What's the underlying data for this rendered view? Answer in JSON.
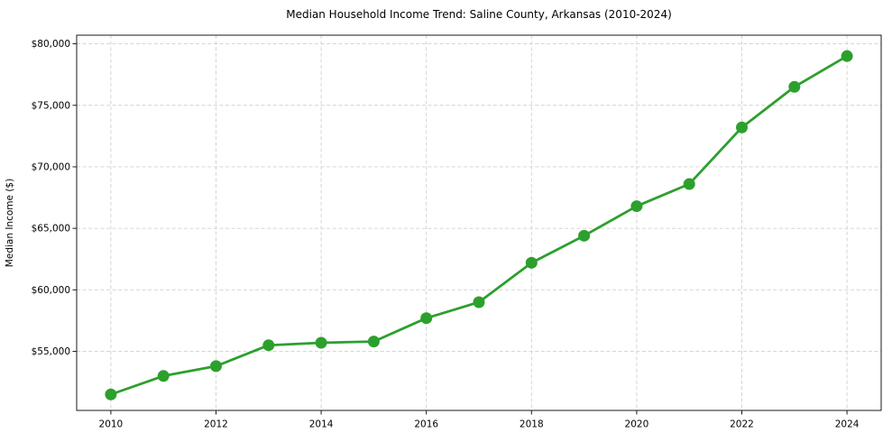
{
  "chart_data": {
    "type": "line",
    "title": "Median Household Income Trend: Saline County, Arkansas (2010-2024)",
    "xlabel": "",
    "ylabel": "Median Income ($)",
    "x": [
      2010,
      2011,
      2012,
      2013,
      2014,
      2015,
      2016,
      2017,
      2018,
      2019,
      2020,
      2021,
      2022,
      2023,
      2024
    ],
    "values": [
      51500,
      53000,
      53800,
      55500,
      55700,
      55800,
      57700,
      59000,
      62200,
      64400,
      66800,
      68600,
      73200,
      76500,
      79000
    ],
    "xticks": [
      2010,
      2012,
      2014,
      2016,
      2018,
      2020,
      2022,
      2024
    ],
    "xtick_labels": [
      "2010",
      "2012",
      "2014",
      "2016",
      "2018",
      "2020",
      "2022",
      "2024"
    ],
    "yticks": [
      55000,
      60000,
      65000,
      70000,
      75000,
      80000
    ],
    "ytick_labels": [
      "$55,000",
      "$60,000",
      "$65,000",
      "$70,000",
      "$75,000",
      "$80,000"
    ],
    "xlim": [
      2009.35,
      2024.65
    ],
    "ylim": [
      50200,
      80700
    ],
    "grid": true,
    "grid_style": "dashed",
    "legend": "none",
    "marker": "circle",
    "line_color": "#2ca02c",
    "grid_color": "#d0d0d0",
    "axis_color": "#1a1a1a",
    "text_color": "#000000",
    "background_color": "#ffffff"
  }
}
